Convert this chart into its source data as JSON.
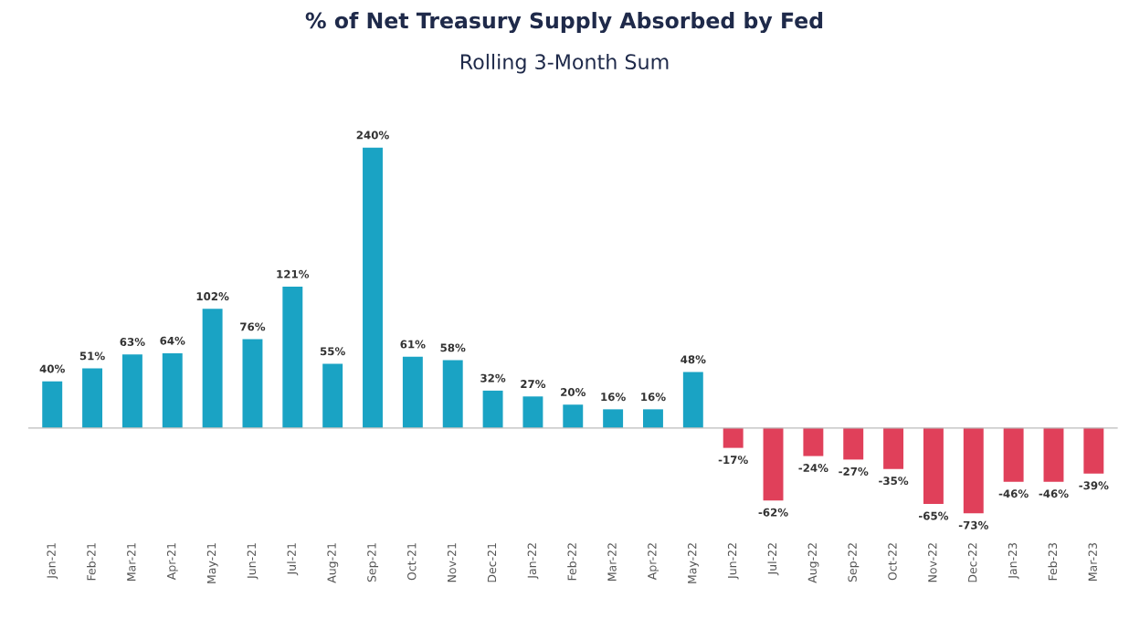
{
  "chart_data": {
    "type": "bar",
    "title": "% of Net Treasury Supply Absorbed by Fed",
    "subtitle": "Rolling 3-Month Sum",
    "categories": [
      "Jan-21",
      "Feb-21",
      "Mar-21",
      "Apr-21",
      "May-21",
      "Jun-21",
      "Jul-21",
      "Aug-21",
      "Sep-21",
      "Oct-21",
      "Nov-21",
      "Dec-21",
      "Jan-22",
      "Feb-22",
      "Mar-22",
      "Apr-22",
      "May-22",
      "Jun-22",
      "Jul-22",
      "Aug-22",
      "Sep-22",
      "Oct-22",
      "Nov-22",
      "Dec-22",
      "Jan-23",
      "Feb-23",
      "Mar-23"
    ],
    "values": [
      40,
      51,
      63,
      64,
      102,
      76,
      121,
      55,
      240,
      61,
      58,
      32,
      27,
      20,
      16,
      16,
      48,
      -17,
      -62,
      -24,
      -27,
      -35,
      -65,
      -73,
      -46,
      -46,
      -39
    ],
    "value_labels": [
      "40%",
      "51%",
      "63%",
      "64%",
      "102%",
      "76%",
      "121%",
      "55%",
      "240%",
      "61%",
      "58%",
      "32%",
      "27%",
      "20%",
      "16%",
      "16%",
      "48%",
      "-17%",
      "-62%",
      "-24%",
      "-27%",
      "-35%",
      "-65%",
      "-73%",
      "-46%",
      "-46%",
      "-39%"
    ],
    "colors": [
      "#1aa3c4",
      "#1aa3c4",
      "#1aa3c4",
      "#1aa3c4",
      "#1aa3c4",
      "#1aa3c4",
      "#1aa3c4",
      "#1aa3c4",
      "#1aa3c4",
      "#1aa3c4",
      "#1aa3c4",
      "#1aa3c4",
      "#1aa3c4",
      "#1aa3c4",
      "#1aa3c4",
      "#1aa3c4",
      "#1aa3c4",
      "#e0405a",
      "#e0405a",
      "#e0405a",
      "#e0405a",
      "#e0405a",
      "#e0405a",
      "#e0405a",
      "#e0405a",
      "#e0405a",
      "#e0405a"
    ],
    "grid": false,
    "legend": false
  }
}
